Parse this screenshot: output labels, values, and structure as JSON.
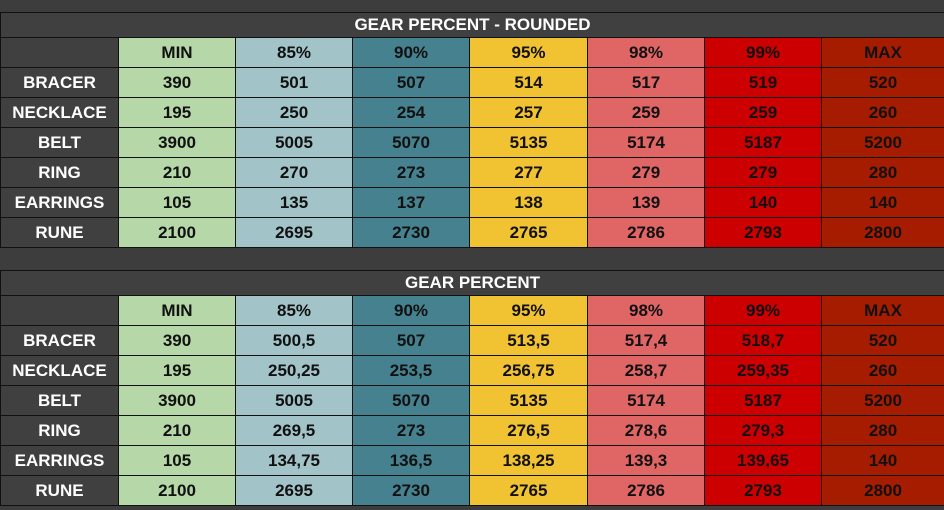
{
  "tables": [
    {
      "title": "GEAR PERCENT - ROUNDED",
      "columns": [
        "MIN",
        "85%",
        "90%",
        "95%",
        "98%",
        "99%",
        "MAX"
      ],
      "rows": [
        {
          "label": "BRACER",
          "values": [
            "390",
            "501",
            "507",
            "514",
            "517",
            "519",
            "520"
          ]
        },
        {
          "label": "NECKLACE",
          "values": [
            "195",
            "250",
            "254",
            "257",
            "259",
            "259",
            "260"
          ]
        },
        {
          "label": "BELT",
          "values": [
            "3900",
            "5005",
            "5070",
            "5135",
            "5174",
            "5187",
            "5200"
          ]
        },
        {
          "label": "RING",
          "values": [
            "210",
            "270",
            "273",
            "277",
            "279",
            "279",
            "280"
          ]
        },
        {
          "label": "EARRINGS",
          "values": [
            "105",
            "135",
            "137",
            "138",
            "139",
            "140",
            "140"
          ]
        },
        {
          "label": "RUNE",
          "values": [
            "2100",
            "2695",
            "2730",
            "2765",
            "2786",
            "2793",
            "2800"
          ]
        }
      ]
    },
    {
      "title": "GEAR PERCENT",
      "columns": [
        "MIN",
        "85%",
        "90%",
        "95%",
        "98%",
        "99%",
        "MAX"
      ],
      "rows": [
        {
          "label": "BRACER",
          "values": [
            "390",
            "500,5",
            "507",
            "513,5",
            "517,4",
            "518,7",
            "520"
          ]
        },
        {
          "label": "NECKLACE",
          "values": [
            "195",
            "250,25",
            "253,5",
            "256,75",
            "258,7",
            "259,35",
            "260"
          ]
        },
        {
          "label": "BELT",
          "values": [
            "3900",
            "5005",
            "5070",
            "5135",
            "5174",
            "5187",
            "5200"
          ]
        },
        {
          "label": "RING",
          "values": [
            "210",
            "269,5",
            "273",
            "276,5",
            "278,6",
            "279,3",
            "280"
          ]
        },
        {
          "label": "EARRINGS",
          "values": [
            "105",
            "134,75",
            "136,5",
            "138,25",
            "139,3",
            "139,65",
            "140"
          ]
        },
        {
          "label": "RUNE",
          "values": [
            "2100",
            "2695",
            "2730",
            "2765",
            "2786",
            "2793",
            "2800"
          ]
        }
      ]
    }
  ],
  "column_colors": [
    "#b6d7a8",
    "#a2c4c9",
    "#45818e",
    "#f1c232",
    "#e06666",
    "#cc0000",
    "#a61c00"
  ],
  "header_color": "#404040"
}
